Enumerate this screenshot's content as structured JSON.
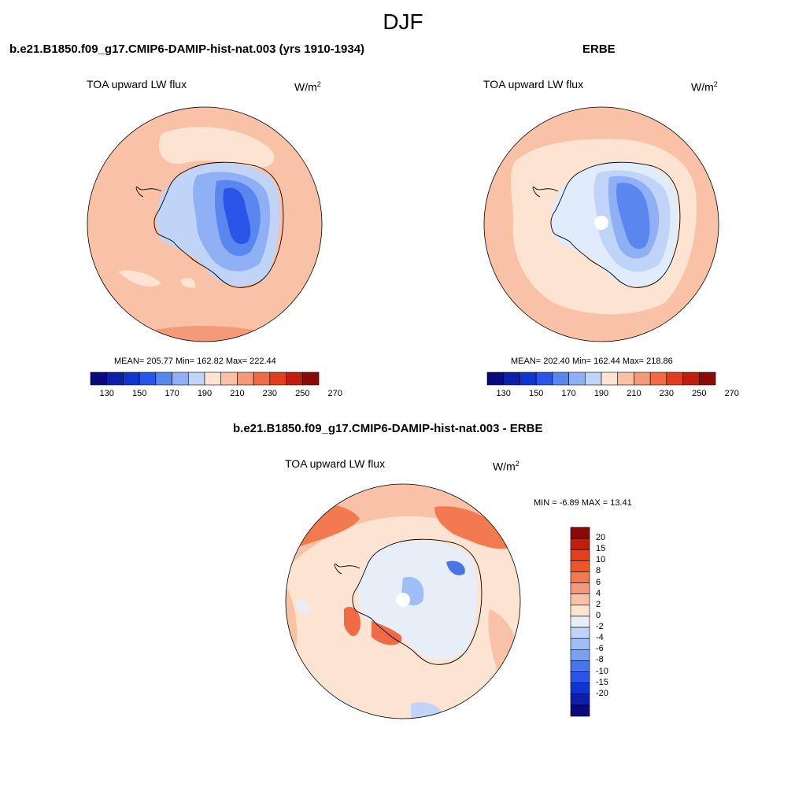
{
  "figure": {
    "title": "DJF"
  },
  "panels": {
    "model": {
      "title": "b.e21.B1850.f09_g17.CMIP6-DAMIP-hist-nat.003 (yrs 1910-1934)",
      "variable": "TOA upward LW flux",
      "units_base": "W/m",
      "units_exp": "2",
      "stats": "MEAN= 205.77  Min= 162.82  Max= 222.44"
    },
    "obs": {
      "title": "ERBE",
      "variable": "TOA upward LW flux",
      "units_base": "W/m",
      "units_exp": "2",
      "stats": "MEAN= 202.40  Min= 162.44  Max= 218.86"
    },
    "diff": {
      "title": "b.e21.B1850.f09_g17.CMIP6-DAMIP-hist-nat.003 - ERBE",
      "variable": "TOA upward LW flux",
      "units_base": "W/m",
      "units_exp": "2",
      "stats": "MIN =  -6.89 MAX =  13.41"
    }
  },
  "colorbars": {
    "abs": {
      "colors": [
        "#0a0a7a",
        "#0d1fa8",
        "#1034d0",
        "#2a55e8",
        "#5a86f0",
        "#8fb0f4",
        "#c0d4f8",
        "#fce3d2",
        "#f9c2a6",
        "#f59a78",
        "#f06a44",
        "#e23f1e",
        "#bf1f0c",
        "#8a0a06"
      ],
      "labels": [
        "130",
        "150",
        "170",
        "190",
        "210",
        "230",
        "250",
        "270"
      ]
    },
    "diff": {
      "colors": [
        "#8a0a06",
        "#bf1f0c",
        "#e23f1e",
        "#f0552a",
        "#f37a50",
        "#f59a78",
        "#f9c2a6",
        "#fce3d2",
        "#e8eef8",
        "#c0d4f8",
        "#a0bef6",
        "#7aa0f0",
        "#4a74ea",
        "#2a55e8",
        "#1034d0",
        "#0d1fa8",
        "#0a0a7a"
      ],
      "labels": [
        "20",
        "15",
        "10",
        "8",
        "6",
        "4",
        "2",
        "0",
        "-2",
        "-4",
        "-6",
        "-8",
        "-10",
        "-15",
        "-20"
      ]
    }
  },
  "chart_data": [
    {
      "type": "heatmap",
      "title": "b.e21.B1850.f09_g17.CMIP6-DAMIP-hist-nat.003 (yrs 1910-1934)",
      "variable": "TOA upward LW flux",
      "units": "W/m2",
      "projection": "south polar stereographic",
      "mean": 205.77,
      "min": 162.82,
      "max": 222.44,
      "contour_levels": [
        130,
        140,
        150,
        160,
        170,
        180,
        190,
        200,
        210,
        220,
        230,
        240,
        250,
        260,
        270
      ]
    },
    {
      "type": "heatmap",
      "title": "ERBE",
      "variable": "TOA upward LW flux",
      "units": "W/m2",
      "projection": "south polar stereographic",
      "mean": 202.4,
      "min": 162.44,
      "max": 218.86,
      "contour_levels": [
        130,
        140,
        150,
        160,
        170,
        180,
        190,
        200,
        210,
        220,
        230,
        240,
        250,
        260,
        270
      ]
    },
    {
      "type": "heatmap",
      "title": "b.e21.B1850.f09_g17.CMIP6-DAMIP-hist-nat.003 - ERBE",
      "variable": "TOA upward LW flux",
      "units": "W/m2",
      "projection": "south polar stereographic",
      "min": -6.89,
      "max": 13.41,
      "contour_levels": [
        -20,
        -15,
        -10,
        -8,
        -6,
        -4,
        -2,
        0,
        2,
        4,
        6,
        8,
        10,
        15,
        20
      ]
    }
  ]
}
